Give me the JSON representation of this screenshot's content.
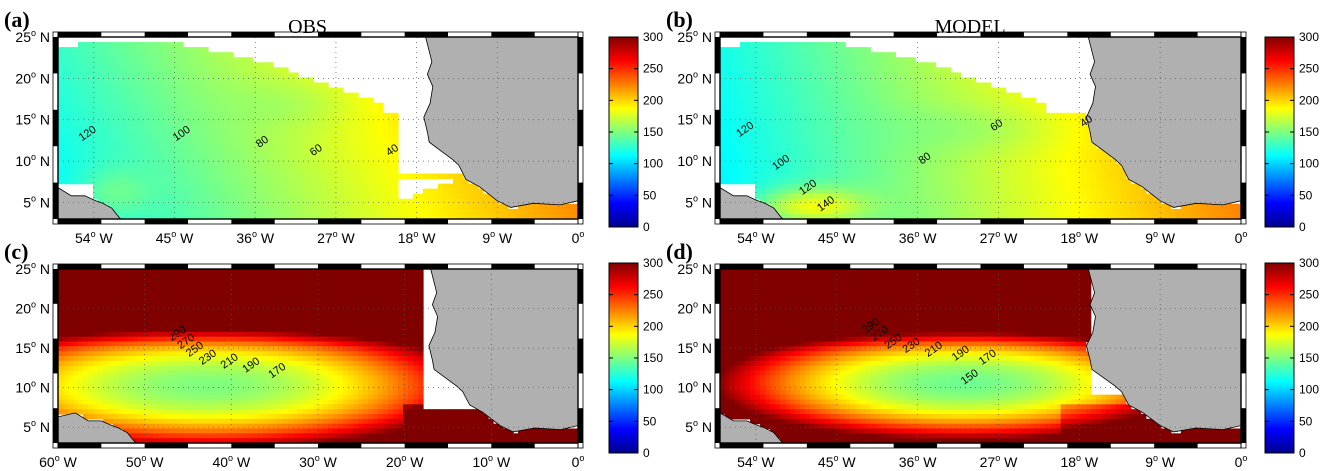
{
  "figure": {
    "land_color": "#b0b0b0",
    "colormap": "jet"
  },
  "chart_data": [
    {
      "type": "heatmap",
      "panel_label": "(a)",
      "title": "OBS",
      "xlim": [
        -58,
        0
      ],
      "ylim": [
        3,
        25
      ],
      "xticks": [
        {
          "v": -54,
          "label": "54"
        },
        {
          "v": -45,
          "label": "45"
        },
        {
          "v": -36,
          "label": "36"
        },
        {
          "v": -27,
          "label": "27"
        },
        {
          "v": -18,
          "label": "18"
        },
        {
          "v": -9,
          "label": "9"
        },
        {
          "v": 0,
          "label": "0"
        }
      ],
      "xticks_unit": [
        "W",
        "W",
        "W",
        "W",
        "W",
        "W",
        ""
      ],
      "yticks": [
        {
          "v": 5,
          "label": "5"
        },
        {
          "v": 10,
          "label": "10"
        },
        {
          "v": 15,
          "label": "15"
        },
        {
          "v": 20,
          "label": "20"
        },
        {
          "v": 25,
          "label": "25"
        }
      ],
      "yunit": "N",
      "clim": [
        0,
        300
      ],
      "cbar_ticks": [
        0,
        50,
        100,
        150,
        200,
        250,
        300
      ],
      "contour_labels": [
        {
          "lon": -54.5,
          "lat": 13,
          "text": "120"
        },
        {
          "lon": -44,
          "lat": 13,
          "text": "100"
        },
        {
          "lon": -35,
          "lat": 12,
          "text": "80"
        },
        {
          "lon": -29,
          "lat": 11,
          "text": "60"
        },
        {
          "lon": -20.5,
          "lat": 11,
          "text": "40"
        }
      ]
    },
    {
      "type": "heatmap",
      "panel_label": "(b)",
      "title": "MODEL",
      "xlim": [
        -58,
        0
      ],
      "ylim": [
        3,
        25
      ],
      "xticks": [
        {
          "v": -54,
          "label": "54"
        },
        {
          "v": -45,
          "label": "45"
        },
        {
          "v": -36,
          "label": "36"
        },
        {
          "v": -27,
          "label": "27"
        },
        {
          "v": -18,
          "label": "18"
        },
        {
          "v": -9,
          "label": "9"
        },
        {
          "v": 0,
          "label": "0"
        }
      ],
      "xticks_unit": [
        "W",
        "W",
        "W",
        "W",
        "W",
        "W",
        ""
      ],
      "yticks": [
        {
          "v": 5,
          "label": "5"
        },
        {
          "v": 10,
          "label": "10"
        },
        {
          "v": 15,
          "label": "15"
        },
        {
          "v": 20,
          "label": "20"
        },
        {
          "v": 25,
          "label": "25"
        }
      ],
      "yunit": "N",
      "clim": [
        0,
        300
      ],
      "cbar_ticks": [
        0,
        50,
        100,
        150,
        200,
        250,
        300
      ],
      "contour_labels": [
        {
          "lon": -55,
          "lat": 13.5,
          "text": "120"
        },
        {
          "lon": -51,
          "lat": 9.5,
          "text": "100"
        },
        {
          "lon": -48,
          "lat": 6.5,
          "text": "120"
        },
        {
          "lon": -46,
          "lat": 4.5,
          "text": "140"
        },
        {
          "lon": -35,
          "lat": 10,
          "text": "80"
        },
        {
          "lon": -27,
          "lat": 14,
          "text": "60"
        },
        {
          "lon": -17,
          "lat": 14.5,
          "text": "40"
        }
      ]
    },
    {
      "type": "heatmap",
      "panel_label": "(c)",
      "title": "",
      "xlim": [
        -60,
        0
      ],
      "ylim": [
        3,
        25
      ],
      "xticks": [
        {
          "v": -60,
          "label": "60"
        },
        {
          "v": -50,
          "label": "50"
        },
        {
          "v": -40,
          "label": "40"
        },
        {
          "v": -30,
          "label": "30"
        },
        {
          "v": -20,
          "label": "20"
        },
        {
          "v": -10,
          "label": "10"
        },
        {
          "v": 0,
          "label": "0"
        }
      ],
      "xticks_unit": [
        "W",
        "W",
        "W",
        "W",
        "W",
        "W",
        ""
      ],
      "yticks": [
        {
          "v": 5,
          "label": "5"
        },
        {
          "v": 10,
          "label": "10"
        },
        {
          "v": 15,
          "label": "15"
        },
        {
          "v": 20,
          "label": "20"
        },
        {
          "v": 25,
          "label": "25"
        }
      ],
      "yunit": "N",
      "clim": [
        0,
        300
      ],
      "cbar_ticks": [
        0,
        50,
        100,
        150,
        200,
        250,
        300
      ],
      "contour_labels": [
        {
          "lon": -46,
          "lat": 16.5,
          "text": "290"
        },
        {
          "lon": -45,
          "lat": 15.5,
          "text": "270"
        },
        {
          "lon": -44,
          "lat": 14.5,
          "text": "250"
        },
        {
          "lon": -42.5,
          "lat": 13.5,
          "text": "230"
        },
        {
          "lon": -40,
          "lat": 13,
          "text": "210"
        },
        {
          "lon": -37.5,
          "lat": 12.5,
          "text": "190"
        },
        {
          "lon": -34.5,
          "lat": 11.8,
          "text": "170"
        }
      ]
    },
    {
      "type": "heatmap",
      "panel_label": "(d)",
      "title": "",
      "xlim": [
        -58,
        0
      ],
      "ylim": [
        3,
        25
      ],
      "xticks": [
        {
          "v": -54,
          "label": "54"
        },
        {
          "v": -45,
          "label": "45"
        },
        {
          "v": -36,
          "label": "36"
        },
        {
          "v": -27,
          "label": "27"
        },
        {
          "v": -18,
          "label": "18"
        },
        {
          "v": -9,
          "label": "9"
        },
        {
          "v": 0,
          "label": "0"
        }
      ],
      "xticks_unit": [
        "W",
        "W",
        "W",
        "W",
        "W",
        "W",
        ""
      ],
      "yticks": [
        {
          "v": 5,
          "label": "5"
        },
        {
          "v": 10,
          "label": "10"
        },
        {
          "v": 15,
          "label": "15"
        },
        {
          "v": 20,
          "label": "20"
        },
        {
          "v": 25,
          "label": "25"
        }
      ],
      "yunit": "N",
      "clim": [
        0,
        300
      ],
      "cbar_ticks": [
        0,
        50,
        100,
        150,
        200,
        250,
        300
      ],
      "contour_labels": [
        {
          "lon": -41,
          "lat": 17.5,
          "text": "290"
        },
        {
          "lon": -40,
          "lat": 16.5,
          "text": "270"
        },
        {
          "lon": -38.5,
          "lat": 15.5,
          "text": "250"
        },
        {
          "lon": -36.5,
          "lat": 15,
          "text": "230"
        },
        {
          "lon": -34,
          "lat": 14.5,
          "text": "210"
        },
        {
          "lon": -31,
          "lat": 14,
          "text": "190"
        },
        {
          "lon": -28,
          "lat": 13.5,
          "text": "170"
        },
        {
          "lon": -30,
          "lat": 11,
          "text": "150"
        }
      ]
    }
  ]
}
